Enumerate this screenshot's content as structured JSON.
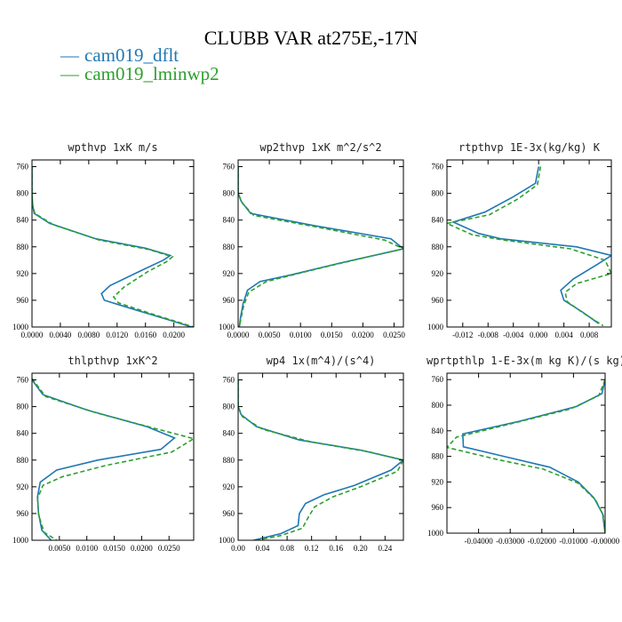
{
  "figure": {
    "title": "CLUBB VAR at275E,-17N"
  },
  "legend": [
    {
      "name": "cam019_dflt",
      "color": "#1f77b4",
      "dash": ""
    },
    {
      "name": "cam019_lminwp2",
      "color": "#2ca02c",
      "dash": "5,3"
    }
  ],
  "chart_data": [
    {
      "type": "line",
      "title": "wpthvp  1xK m/s",
      "ylim": [
        1000,
        750
      ],
      "yticks": [
        760,
        800,
        840,
        880,
        920,
        960,
        1000
      ],
      "xlim": [
        0,
        0.0228
      ],
      "xticks": [
        0,
        0.004,
        0.008,
        0.012,
        0.016,
        0.02
      ],
      "xtick_labels": [
        "0.0000",
        "0.0040",
        "0.0080",
        "0.0120",
        "0.0160",
        "0.0200"
      ],
      "series": [
        {
          "name": "cam019_dflt",
          "points": [
            [
              0,
              760
            ],
            [
              0,
              800
            ],
            [
              0.0001,
              818
            ],
            [
              0.0003,
              830
            ],
            [
              0.0025,
              845
            ],
            [
              0.009,
              868
            ],
            [
              0.016,
              882
            ],
            [
              0.0195,
              893
            ],
            [
              0.0185,
              900
            ],
            [
              0.0155,
              915
            ],
            [
              0.011,
              938
            ],
            [
              0.0098,
              950
            ],
            [
              0.0102,
              960
            ],
            [
              0.0148,
              975
            ],
            [
              0.0195,
              990
            ],
            [
              0.0225,
              1000
            ]
          ]
        },
        {
          "name": "cam019_lminwp2",
          "points": [
            [
              0,
              760
            ],
            [
              0,
              800
            ],
            [
              0.0001,
              818
            ],
            [
              0.0004,
              830
            ],
            [
              0.003,
              847
            ],
            [
              0.0095,
              870
            ],
            [
              0.0165,
              884
            ],
            [
              0.0198,
              895
            ],
            [
              0.019,
              902
            ],
            [
              0.0162,
              918
            ],
            [
              0.013,
              940
            ],
            [
              0.0115,
              955
            ],
            [
              0.0122,
              964
            ],
            [
              0.0168,
              980
            ],
            [
              0.0228,
              1000
            ]
          ]
        }
      ]
    },
    {
      "type": "line",
      "title": "wp2thvp  1xK m^2/s^2",
      "ylim": [
        1000,
        750
      ],
      "yticks": [
        760,
        800,
        840,
        880,
        920,
        960,
        1000
      ],
      "xlim": [
        0,
        0.0265
      ],
      "xticks": [
        0,
        0.005,
        0.01,
        0.015,
        0.02,
        0.025
      ],
      "xtick_labels": [
        "0.0000",
        "0.0050",
        "0.0100",
        "0.0150",
        "0.0200",
        "0.0250"
      ],
      "series": [
        {
          "name": "cam019_dflt",
          "points": [
            [
              0,
              760
            ],
            [
              0,
              800
            ],
            [
              0.0005,
              812
            ],
            [
              0.002,
              830
            ],
            [
              0.012,
              848
            ],
            [
              0.0245,
              868
            ],
            [
              0.0265,
              883
            ],
            [
              0.016,
              905
            ],
            [
              0.0085,
              922
            ],
            [
              0.0035,
              932
            ],
            [
              0.0015,
              945
            ],
            [
              0.0008,
              965
            ],
            [
              0.0004,
              985
            ],
            [
              0.0002,
              1000
            ]
          ]
        },
        {
          "name": "cam019_lminwp2",
          "points": [
            [
              0,
              760
            ],
            [
              0,
              800
            ],
            [
              0.0007,
              815
            ],
            [
              0.0025,
              833
            ],
            [
              0.013,
              851
            ],
            [
              0.0235,
              870
            ],
            [
              0.0265,
              883
            ],
            [
              0.0185,
              900
            ],
            [
              0.0105,
              918
            ],
            [
              0.0045,
              932
            ],
            [
              0.0017,
              948
            ],
            [
              0.0009,
              968
            ],
            [
              0.0004,
              990
            ],
            [
              0.0002,
              1000
            ]
          ]
        }
      ]
    },
    {
      "type": "line",
      "title": "rtpthvp  1E-3x(kg/kg) K",
      "ylim": [
        1000,
        750
      ],
      "yticks": [
        760,
        800,
        840,
        880,
        920,
        960,
        1000
      ],
      "xlim": [
        -0.0145,
        0.0115
      ],
      "xticks": [
        -0.012,
        -0.008,
        -0.004,
        0,
        0.004,
        0.008
      ],
      "xtick_labels": [
        "-0.012",
        "-0.008",
        "-0.004",
        "0.000",
        "0.004",
        "0.008"
      ],
      "series": [
        {
          "name": "cam019_dflt",
          "points": [
            [
              0,
              760
            ],
            [
              -0.0005,
              785
            ],
            [
              -0.004,
              805
            ],
            [
              -0.0085,
              828
            ],
            [
              -0.0135,
              843
            ],
            [
              -0.0095,
              860
            ],
            [
              -0.006,
              868
            ],
            [
              0.006,
              880
            ],
            [
              0.0115,
              893
            ],
            [
              0.0095,
              905
            ],
            [
              0.0055,
              928
            ],
            [
              0.0035,
              945
            ],
            [
              0.004,
              960
            ],
            [
              0.007,
              978
            ],
            [
              0.0095,
              995
            ]
          ]
        },
        {
          "name": "cam019_lminwp2",
          "points": [
            [
              0.0003,
              760
            ],
            [
              -0.0002,
              787
            ],
            [
              -0.0032,
              808
            ],
            [
              -0.0078,
              832
            ],
            [
              -0.0145,
              845
            ],
            [
              -0.0105,
              862
            ],
            [
              -0.0055,
              870
            ],
            [
              0.005,
              883
            ],
            [
              0.0105,
              900
            ],
            [
              0.0115,
              920
            ],
            [
              0.006,
              935
            ],
            [
              0.0042,
              948
            ],
            [
              0.0045,
              962
            ],
            [
              0.0072,
              980
            ],
            [
              0.0102,
              998
            ]
          ]
        }
      ]
    },
    {
      "type": "line",
      "title": "thlpthvp  1xK^2",
      "ylim": [
        1000,
        750
      ],
      "yticks": [
        760,
        800,
        840,
        880,
        920,
        960,
        1000
      ],
      "xlim": [
        0,
        0.0295
      ],
      "xticks": [
        0.005,
        0.01,
        0.015,
        0.02,
        0.025
      ],
      "xtick_labels": [
        "0.0050",
        "0.0100",
        "0.0150",
        "0.0200",
        "0.0250"
      ],
      "series": [
        {
          "name": "cam019_dflt",
          "points": [
            [
              0,
              760
            ],
            [
              0.002,
              782
            ],
            [
              0.01,
              805
            ],
            [
              0.021,
              830
            ],
            [
              0.026,
              847
            ],
            [
              0.0235,
              864
            ],
            [
              0.012,
              880
            ],
            [
              0.0045,
              895
            ],
            [
              0.0015,
              913
            ],
            [
              0.001,
              935
            ],
            [
              0.0012,
              960
            ],
            [
              0.0018,
              985
            ],
            [
              0.0035,
              1000
            ]
          ]
        },
        {
          "name": "cam019_lminwp2",
          "points": [
            [
              0,
              758
            ],
            [
              0.0025,
              785
            ],
            [
              0.012,
              810
            ],
            [
              0.0235,
              835
            ],
            [
              0.0295,
              848
            ],
            [
              0.0255,
              868
            ],
            [
              0.0135,
              888
            ],
            [
              0.0055,
              905
            ],
            [
              0.002,
              918
            ],
            [
              0.001,
              938
            ],
            [
              0.0012,
              962
            ],
            [
              0.0022,
              988
            ],
            [
              0.0045,
              1000
            ]
          ]
        }
      ]
    },
    {
      "type": "line",
      "title": "wp4  1x(m^4)/(s^4)",
      "ylim": [
        1000,
        750
      ],
      "yticks": [
        760,
        800,
        840,
        880,
        920,
        960,
        1000
      ],
      "xlim": [
        0,
        0.27
      ],
      "xticks": [
        0,
        0.04,
        0.08,
        0.12,
        0.16,
        0.2,
        0.24
      ],
      "xtick_labels": [
        "0.00",
        "0.04",
        "0.08",
        "0.12",
        "0.16",
        "0.20",
        "0.24"
      ],
      "series": [
        {
          "name": "cam019_dflt",
          "points": [
            [
              0,
              760
            ],
            [
              0,
              800
            ],
            [
              0.005,
              812
            ],
            [
              0.03,
              830
            ],
            [
              0.1,
              850
            ],
            [
              0.2,
              865
            ],
            [
              0.27,
              880
            ],
            [
              0.25,
              895
            ],
            [
              0.19,
              918
            ],
            [
              0.14,
              932
            ],
            [
              0.11,
              945
            ],
            [
              0.1,
              960
            ],
            [
              0.098,
              978
            ],
            [
              0.07,
              990
            ],
            [
              0.025,
              1000
            ]
          ]
        },
        {
          "name": "cam019_lminwp2",
          "points": [
            [
              0,
              760
            ],
            [
              0,
              800
            ],
            [
              0.007,
              815
            ],
            [
              0.04,
              834
            ],
            [
              0.12,
              853
            ],
            [
              0.215,
              868
            ],
            [
              0.27,
              880
            ],
            [
              0.26,
              897
            ],
            [
              0.2,
              920
            ],
            [
              0.155,
              935
            ],
            [
              0.125,
              950
            ],
            [
              0.115,
              965
            ],
            [
              0.105,
              982
            ],
            [
              0.07,
              993
            ],
            [
              0.03,
              1000
            ]
          ]
        }
      ]
    },
    {
      "type": "line",
      "title": "wprtpthlp  1-E-3x(m kg K)/(s kg)",
      "ylim": [
        1000,
        750
      ],
      "yticks": [
        760,
        800,
        840,
        880,
        920,
        960,
        1000
      ],
      "xlim": [
        -0.05,
        0
      ],
      "xticks": [
        -0.04,
        -0.03,
        -0.02,
        -0.01,
        0
      ],
      "xtick_labels": [
        "-0.04000",
        "-0.03000",
        "-0.02000",
        "-0.01000",
        "-0.00000"
      ],
      "series": [
        {
          "name": "cam019_dflt",
          "points": [
            [
              0,
              760
            ],
            [
              -0.001,
              782
            ],
            [
              -0.009,
              802
            ],
            [
              -0.027,
              825
            ],
            [
              -0.045,
              845
            ],
            [
              -0.0448,
              865
            ],
            [
              -0.032,
              880
            ],
            [
              -0.0175,
              897
            ],
            [
              -0.0085,
              920
            ],
            [
              -0.0035,
              945
            ],
            [
              -0.0008,
              970
            ],
            [
              0,
              1000
            ]
          ]
        },
        {
          "name": "cam019_lminwp2",
          "points": [
            [
              0,
              760
            ],
            [
              -0.002,
              785
            ],
            [
              -0.011,
              806
            ],
            [
              -0.029,
              828
            ],
            [
              -0.047,
              850
            ],
            [
              -0.05,
              866
            ],
            [
              -0.034,
              885
            ],
            [
              -0.0195,
              900
            ],
            [
              -0.0085,
              922
            ],
            [
              -0.003,
              948
            ],
            [
              -0.0006,
              972
            ],
            [
              0,
              1000
            ]
          ]
        }
      ]
    }
  ]
}
